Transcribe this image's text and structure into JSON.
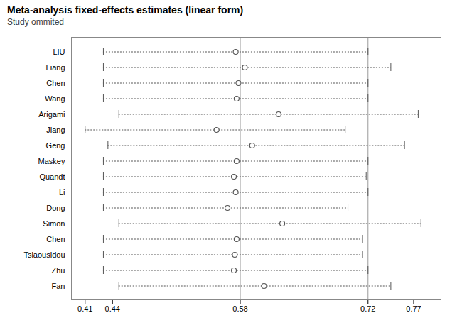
{
  "chart_data": {
    "type": "forest",
    "title": "Meta-analysis fixed-effects estimates (linear form)",
    "subtitle": "Study ommited",
    "categories": [
      "LIU",
      "Liang",
      "Chen",
      "Wang",
      "Arigami",
      "Jiang",
      "Geng",
      "Maskey",
      "Quandt",
      "Li",
      "Dong",
      "Simon",
      "Chen",
      "Tsiaousidou",
      "Zhu",
      "Fan"
    ],
    "values": [
      0.575,
      0.585,
      0.578,
      0.576,
      0.622,
      0.554,
      0.593,
      0.576,
      0.573,
      0.575,
      0.566,
      0.626,
      0.576,
      0.574,
      0.573,
      0.606
    ],
    "ci_low": [
      0.43,
      0.43,
      0.43,
      0.43,
      0.447,
      0.41,
      0.435,
      0.43,
      0.43,
      0.43,
      0.43,
      0.447,
      0.43,
      0.43,
      0.43,
      0.447
    ],
    "ci_high": [
      0.72,
      0.745,
      0.72,
      0.72,
      0.775,
      0.695,
      0.76,
      0.72,
      0.718,
      0.72,
      0.698,
      0.778,
      0.714,
      0.714,
      0.72,
      0.745
    ],
    "reference_lines": [
      0.58,
      0.72
    ],
    "xlim": [
      0.395,
      0.8
    ],
    "xticks": [
      0.41,
      0.44,
      0.58,
      0.72,
      0.77
    ],
    "color": "#555555",
    "grid": false
  }
}
